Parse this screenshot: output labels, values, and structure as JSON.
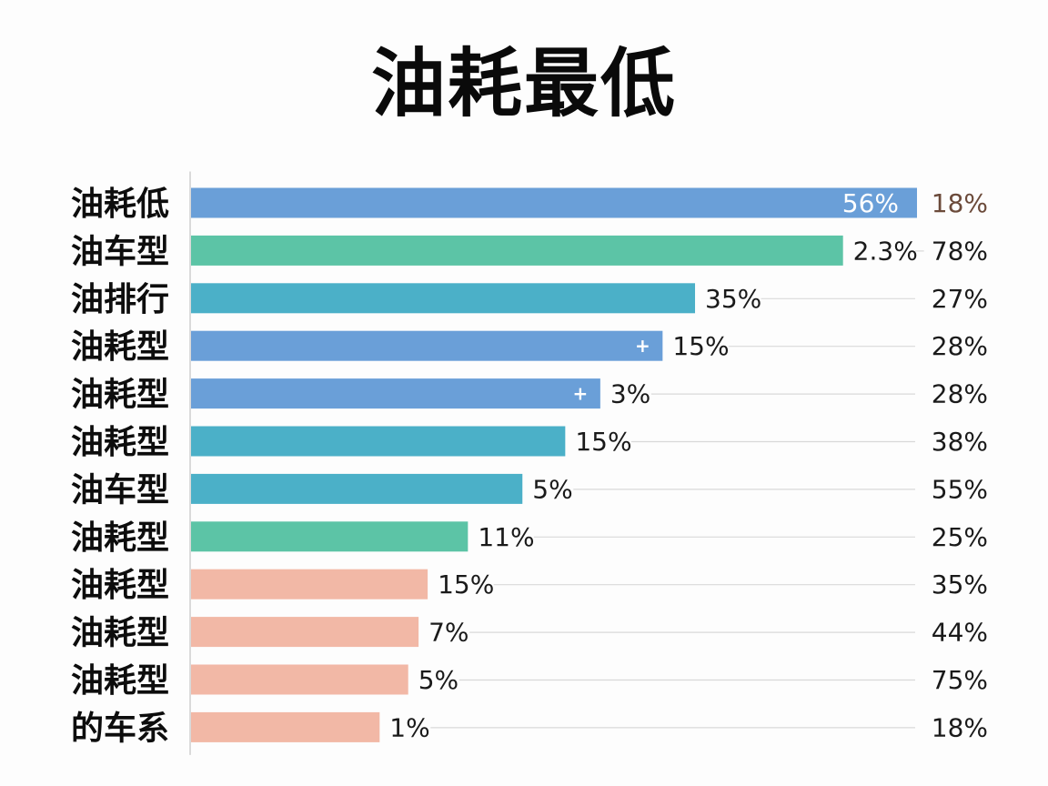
{
  "title": "油耗最低",
  "chart_data": {
    "type": "bar",
    "orientation": "horizontal",
    "title": "油耗最低",
    "xlim": [
      0,
      56
    ],
    "categories": [
      "油耗低",
      "油车型",
      "油排行",
      "油耗型",
      "油耗型",
      "油耗型",
      "油车型",
      "油耗型",
      "油耗型",
      "油耗型",
      "油耗型",
      "的车系"
    ],
    "bar_lengths": [
      56,
      50.3,
      38.9,
      36.4,
      31.6,
      28.9,
      25.6,
      21.4,
      18.3,
      17.6,
      16.8,
      14.6
    ],
    "values": [
      "56%",
      "2.3%",
      "35%",
      "15%",
      "3%",
      "15%",
      "5%",
      "11%",
      "15%",
      "7%",
      "5%",
      "1%"
    ],
    "right_values": [
      "18%",
      "78%",
      "27%",
      "28%",
      "28%",
      "38%",
      "55%",
      "25%",
      "35%",
      "44%",
      "75%",
      "18%"
    ],
    "markers": [
      "",
      "",
      "",
      "+",
      "+",
      "",
      "",
      "",
      "",
      "",
      "",
      ""
    ],
    "bar_colors": [
      "#6a9fd8",
      "#5cc4a6",
      "#4bb0c8",
      "#6a9fd8",
      "#6a9fd8",
      "#4bb0c8",
      "#4bb0c8",
      "#5cc4a6",
      "#f2b8a6",
      "#f2b8a6",
      "#f2b8a6",
      "#f2b8a6"
    ],
    "right_value_colors": [
      "#6b4a3a",
      "#1a1a1a",
      "#1a1a1a",
      "#1a1a1a",
      "#1a1a1a",
      "#1a1a1a",
      "#1a1a1a",
      "#1a1a1a",
      "#1a1a1a",
      "#1a1a1a",
      "#1a1a1a",
      "#1a1a1a"
    ],
    "connector_line_color": "#d9d9d9",
    "axis_color": "#cfcfcf",
    "grid": false,
    "legend": "none"
  }
}
